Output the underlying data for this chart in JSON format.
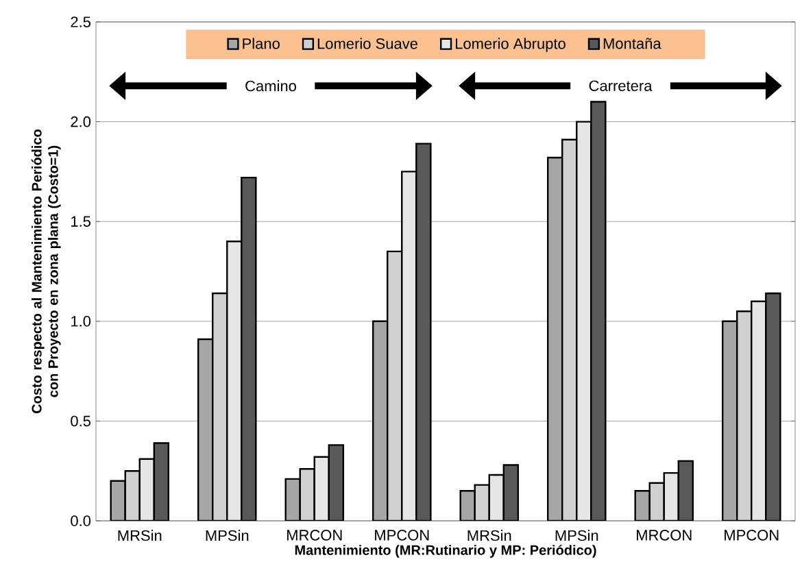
{
  "chart_data": {
    "type": "bar",
    "xlabel": "Mantenimiento (MR:Rutinario y MP: Periódico)",
    "ylabel": "Costo respecto al Mantenimiento Periódico con Proyecto en zona plana (Costo=1)",
    "categories": [
      "MRSin",
      "MPSin",
      "MRCON",
      "MPCON",
      "MRSin",
      "MPSin",
      "MRCON",
      "MPCON"
    ],
    "series": [
      {
        "name": "Plano",
        "color": "#a6a6a6",
        "values": [
          0.2,
          0.91,
          0.21,
          1.0,
          0.15,
          1.82,
          0.15,
          1.0
        ]
      },
      {
        "name": "Lomerio Suave",
        "color": "#d0d0d0",
        "values": [
          0.25,
          1.14,
          0.26,
          1.35,
          0.18,
          1.91,
          0.19,
          1.05
        ]
      },
      {
        "name": "Lomerio Abrupto",
        "color": "#e6e6e6",
        "values": [
          0.31,
          1.4,
          0.32,
          1.75,
          0.23,
          2.0,
          0.24,
          1.1
        ]
      },
      {
        "name": "Montaña",
        "color": "#595959",
        "values": [
          0.39,
          1.72,
          0.38,
          1.89,
          0.28,
          2.1,
          0.3,
          1.14
        ]
      }
    ],
    "ylim": [
      0,
      2.5
    ],
    "yticks": [
      {
        "value": 0,
        "label": "0.0"
      },
      {
        "value": 0.5,
        "label": "0.5"
      },
      {
        "value": 1,
        "label": "1.0"
      },
      {
        "value": 1.5,
        "label": "1.5"
      },
      {
        "value": 2,
        "label": "2.0"
      },
      {
        "value": 2.5,
        "label": "2.5"
      }
    ],
    "grid": "y",
    "legend": "top",
    "annotations": [
      "Camino",
      "Carretera"
    ]
  }
}
